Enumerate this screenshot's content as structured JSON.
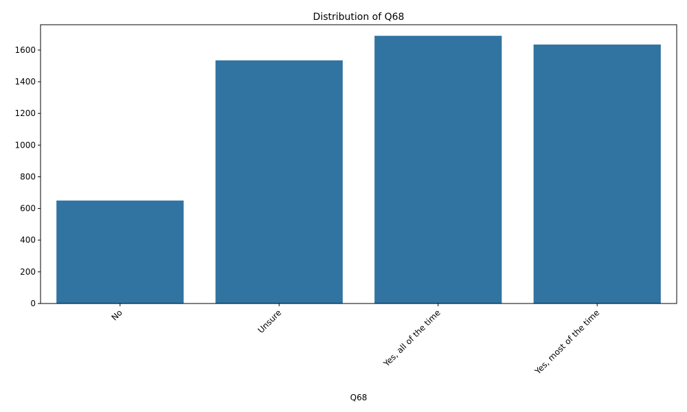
{
  "colors": {
    "bar": "#3274a1",
    "axis": "#000000",
    "background": "#ffffff"
  },
  "chart_data": {
    "type": "bar",
    "title": "Distribution of Q68",
    "xlabel": "Q68",
    "ylabel": "",
    "categories": [
      "No",
      "Unsure",
      "Yes, all of the time",
      "Yes, most of the time"
    ],
    "values": [
      650,
      1535,
      1690,
      1635
    ],
    "ylim": [
      0,
      1760
    ],
    "yticks": [
      0,
      200,
      400,
      600,
      800,
      1000,
      1200,
      1400,
      1600
    ],
    "grid": false,
    "legend": "none"
  }
}
